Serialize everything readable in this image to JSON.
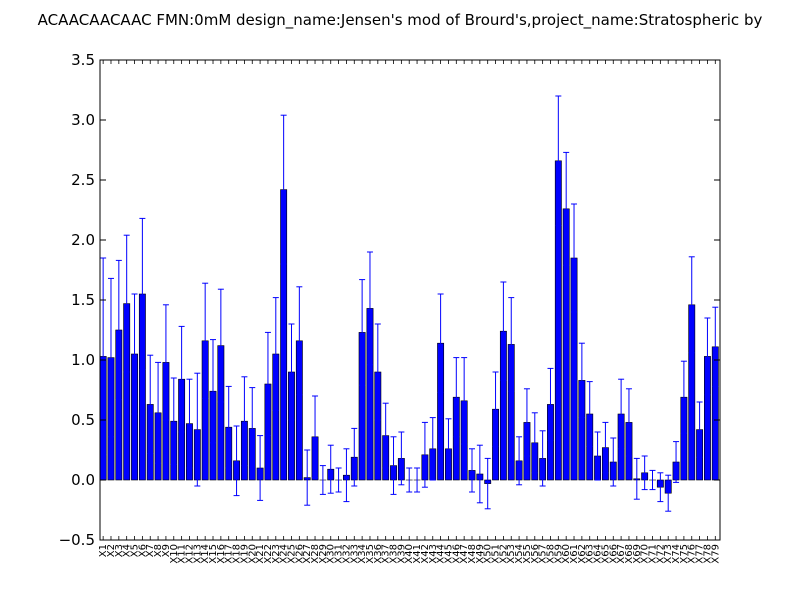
{
  "chart_data": {
    "type": "bar",
    "title": "ACAACAACAAC  FMN:0mM  design_name:Jensen's mod of Brourd's,project_name:Stratospheric by",
    "xlabel": "",
    "ylabel": "",
    "ylim": [
      -0.5,
      3.5
    ],
    "yticks": [
      "−0.5",
      "0.0",
      "0.5",
      "1.0",
      "1.5",
      "2.0",
      "2.5",
      "3.0",
      "3.5"
    ],
    "ytick_values": [
      -0.5,
      0.0,
      0.5,
      1.0,
      1.5,
      2.0,
      2.5,
      3.0,
      3.5
    ],
    "grid": false,
    "bar_color": "#0000ff",
    "error_color": "#0000ff",
    "categories": [
      "X1",
      "X2",
      "X3",
      "X4",
      "X5",
      "X6",
      "X7",
      "X8",
      "X9",
      "X10",
      "X11",
      "X12",
      "X13",
      "X14",
      "X15",
      "X16",
      "X17",
      "X18",
      "X19",
      "X20",
      "X21",
      "X22",
      "X23",
      "X24",
      "X25",
      "X26",
      "X27",
      "X28",
      "X29",
      "X30",
      "X31",
      "X32",
      "X33",
      "X34",
      "X35",
      "X36",
      "X37",
      "X38",
      "X39",
      "X40",
      "X41",
      "X42",
      "X43",
      "X44",
      "X45",
      "X46",
      "X47",
      "X48",
      "X49",
      "X50",
      "X51",
      "X52",
      "X53",
      "X54",
      "X55",
      "X56",
      "X57",
      "X58",
      "X59",
      "X60",
      "X61",
      "X62",
      "X63",
      "X64",
      "X65",
      "X66",
      "X67",
      "X68",
      "X69",
      "X70",
      "X71",
      "X72",
      "X73",
      "X74",
      "X75",
      "X76",
      "X77",
      "X78",
      "X79"
    ],
    "values": [
      1.03,
      1.02,
      1.25,
      1.47,
      1.05,
      1.55,
      0.63,
      0.56,
      0.98,
      0.49,
      0.84,
      0.47,
      0.42,
      1.16,
      0.74,
      1.12,
      0.44,
      0.16,
      0.49,
      0.43,
      0.1,
      0.8,
      1.05,
      2.42,
      0.9,
      1.16,
      0.02,
      0.36,
      0.0,
      0.09,
      0.0,
      0.04,
      0.19,
      1.23,
      1.43,
      0.9,
      0.37,
      0.12,
      0.18,
      0.0,
      0.0,
      0.21,
      0.26,
      1.14,
      0.26,
      0.69,
      0.66,
      0.08,
      0.05,
      -0.03,
      0.59,
      1.24,
      1.13,
      0.16,
      0.48,
      0.31,
      0.18,
      0.63,
      2.66,
      2.26,
      1.85,
      0.83,
      0.55,
      0.2,
      0.27,
      0.15,
      0.55,
      0.48,
      0.01,
      0.06,
      0.0,
      -0.06,
      -0.11,
      0.15,
      0.69,
      1.46,
      0.42,
      1.03,
      1.11
    ],
    "errors": [
      0.82,
      0.66,
      0.58,
      0.57,
      0.5,
      0.63,
      0.41,
      0.42,
      0.48,
      0.36,
      0.44,
      0.37,
      0.47,
      0.48,
      0.43,
      0.47,
      0.34,
      0.29,
      0.37,
      0.34,
      0.27,
      0.43,
      0.47,
      0.62,
      0.4,
      0.45,
      0.23,
      0.34,
      0.12,
      0.2,
      0.1,
      0.22,
      0.24,
      0.44,
      0.47,
      0.4,
      0.27,
      0.24,
      0.22,
      0.1,
      0.1,
      0.27,
      0.26,
      0.41,
      0.25,
      0.33,
      0.36,
      0.18,
      0.24,
      0.21,
      0.31,
      0.41,
      0.39,
      0.2,
      0.28,
      0.25,
      0.23,
      0.3,
      0.54,
      0.47,
      0.45,
      0.31,
      0.27,
      0.2,
      0.21,
      0.2,
      0.29,
      0.28,
      0.17,
      0.14,
      0.08,
      0.12,
      0.15,
      0.17,
      0.3,
      0.4,
      0.23,
      0.32,
      0.33
    ]
  }
}
